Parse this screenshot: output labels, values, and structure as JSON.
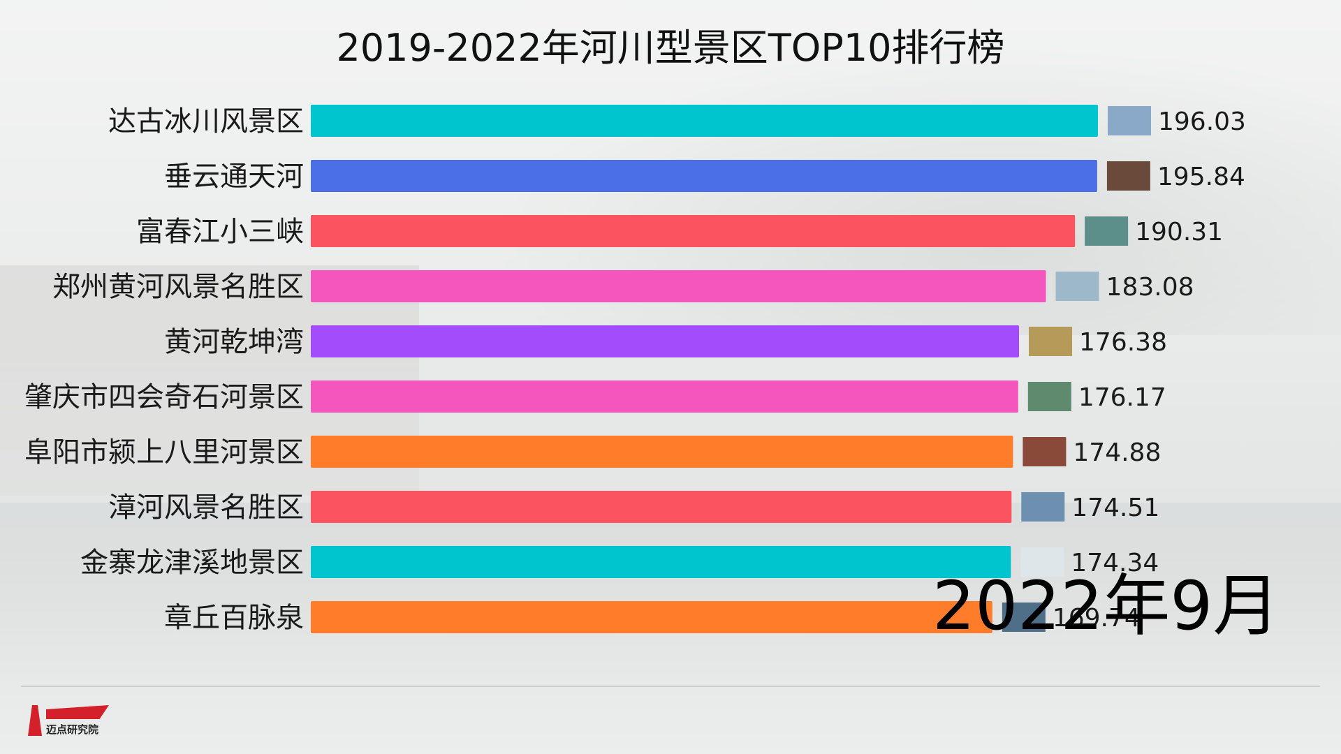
{
  "chart_data": {
    "type": "bar",
    "title": "2019-2022年河川型景区TOP10排行榜",
    "categories": [
      "达古冰川风景区",
      "垂云通天河",
      "富春江小三峡",
      "郑州黄河风景名胜区",
      "黄河乾坤湾",
      "肇庆市四会奇石河景区",
      "阜阳市颍上八里河景区",
      "漳河风景名胜区",
      "金寨龙津溪地景区",
      "章丘百脉泉"
    ],
    "values": [
      196.03,
      195.84,
      190.31,
      183.08,
      176.38,
      176.17,
      174.88,
      174.51,
      174.34,
      169.74
    ],
    "value_labels": [
      "196.03",
      "195.84",
      "190.31",
      "183.08",
      "176.38",
      "176.17",
      "174.88",
      "174.51",
      "174.34",
      "169.74"
    ],
    "colors": [
      "#00c5cf",
      "#4b6fe6",
      "#fb5360",
      "#f556be",
      "#a34cfc",
      "#f556be",
      "#ff7c2b",
      "#fb5360",
      "#00c5cf",
      "#ff7c2b"
    ],
    "thumbnail_tints": [
      "#8aa8c8",
      "#6a4a3a",
      "#5c8f8a",
      "#9db8c9",
      "#b69a5a",
      "#5f8a6e",
      "#8a4a3a",
      "#6d8fb0",
      "#dfe6ea",
      "#4f6f88"
    ],
    "xlim": [
      0,
      196.03
    ],
    "grid": false,
    "legend": "none"
  },
  "date_label": "2022年9月",
  "logo": {
    "text": "迈点研究院",
    "icon": "lighthouse-icon"
  }
}
